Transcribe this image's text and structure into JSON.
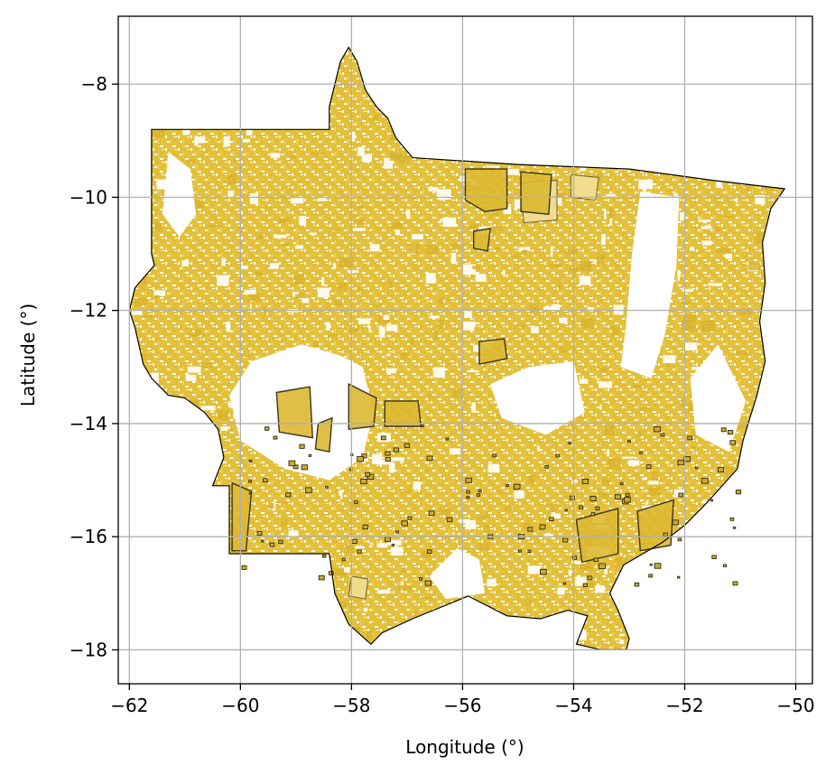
{
  "chart_data": {
    "type": "map",
    "xlabel": "Longitude (°)",
    "ylabel": "Latitude (°)",
    "xlim": [
      -62.2,
      -49.7
    ],
    "ylim": [
      -18.6,
      -6.8
    ],
    "x_ticks": [
      -62,
      -60,
      -58,
      -56,
      -54,
      -52,
      -50
    ],
    "y_ticks": [
      -8,
      -10,
      -12,
      -14,
      -16,
      -18
    ],
    "x_tick_labels": [
      "−62",
      "−60",
      "−58",
      "−56",
      "−54",
      "−52",
      "−50"
    ],
    "y_tick_labels": [
      "−8",
      "−10",
      "−12",
      "−14",
      "−16",
      "−18"
    ],
    "grid": true,
    "colors": {
      "parcel_fill": "#e3c03a",
      "parcel_light": "#f1dc8c",
      "highlight_fill": "#dcb832",
      "highlight_edge": "#3a3420",
      "boundary": "#000000",
      "grid": "#b0b0b0"
    },
    "boundary": [
      [
        -61.6,
        -8.8
      ],
      [
        -58.4,
        -8.8
      ],
      [
        -58.4,
        -8.4
      ],
      [
        -58.2,
        -7.6
      ],
      [
        -58.05,
        -7.35
      ],
      [
        -57.9,
        -7.6
      ],
      [
        -57.75,
        -8.1
      ],
      [
        -57.55,
        -8.4
      ],
      [
        -57.35,
        -8.6
      ],
      [
        -57.2,
        -8.95
      ],
      [
        -56.9,
        -9.3
      ],
      [
        -55.0,
        -9.42
      ],
      [
        -53.0,
        -9.5
      ],
      [
        -51.5,
        -9.7
      ],
      [
        -50.2,
        -9.85
      ],
      [
        -50.45,
        -10.2
      ],
      [
        -50.6,
        -10.8
      ],
      [
        -50.55,
        -11.5
      ],
      [
        -50.65,
        -12.2
      ],
      [
        -50.55,
        -12.9
      ],
      [
        -50.7,
        -13.5
      ],
      [
        -50.95,
        -14.3
      ],
      [
        -51.05,
        -14.8
      ],
      [
        -51.6,
        -15.4
      ],
      [
        -52.0,
        -15.8
      ],
      [
        -52.4,
        -16.1
      ],
      [
        -53.1,
        -16.5
      ],
      [
        -53.35,
        -17.0
      ],
      [
        -53.2,
        -17.3
      ],
      [
        -53.0,
        -17.8
      ],
      [
        -53.05,
        -18.0
      ],
      [
        -53.5,
        -18.0
      ],
      [
        -53.95,
        -17.9
      ],
      [
        -53.75,
        -17.4
      ],
      [
        -54.1,
        -17.3
      ],
      [
        -54.6,
        -17.45
      ],
      [
        -55.2,
        -17.4
      ],
      [
        -55.9,
        -17.05
      ],
      [
        -56.4,
        -17.25
      ],
      [
        -56.9,
        -17.45
      ],
      [
        -57.45,
        -17.7
      ],
      [
        -57.65,
        -17.9
      ],
      [
        -58.05,
        -17.55
      ],
      [
        -58.3,
        -17.0
      ],
      [
        -58.4,
        -16.3
      ],
      [
        -60.2,
        -16.3
      ],
      [
        -60.2,
        -15.1
      ],
      [
        -60.5,
        -15.1
      ],
      [
        -60.3,
        -14.6
      ],
      [
        -60.4,
        -14.1
      ],
      [
        -60.65,
        -13.8
      ],
      [
        -61.0,
        -13.55
      ],
      [
        -61.3,
        -13.5
      ],
      [
        -61.6,
        -13.2
      ],
      [
        -61.75,
        -12.95
      ],
      [
        -61.9,
        -12.3
      ],
      [
        -62.0,
        -12.0
      ],
      [
        -61.9,
        -11.6
      ],
      [
        -61.55,
        -11.2
      ],
      [
        -61.6,
        -11.0
      ],
      [
        -61.6,
        -8.8
      ]
    ],
    "clear_areas": [
      [
        [
          -52.8,
          -9.9
        ],
        [
          -52.95,
          -11.0
        ],
        [
          -53.05,
          -12.2
        ],
        [
          -53.15,
          -13.0
        ],
        [
          -52.6,
          -13.2
        ],
        [
          -52.35,
          -12.4
        ],
        [
          -52.15,
          -11.2
        ],
        [
          -52.1,
          -10.0
        ]
      ],
      [
        [
          -58.2,
          -12.8
        ],
        [
          -58.9,
          -12.6
        ],
        [
          -59.8,
          -12.9
        ],
        [
          -60.2,
          -13.5
        ],
        [
          -60.0,
          -14.3
        ],
        [
          -59.2,
          -14.8
        ],
        [
          -58.4,
          -15.0
        ],
        [
          -57.8,
          -14.6
        ],
        [
          -57.6,
          -13.8
        ],
        [
          -57.8,
          -13.0
        ]
      ],
      [
        [
          -61.3,
          -9.2
        ],
        [
          -60.9,
          -9.5
        ],
        [
          -60.8,
          -10.3
        ],
        [
          -61.1,
          -10.7
        ],
        [
          -61.4,
          -10.3
        ]
      ],
      [
        [
          -54.0,
          -12.9
        ],
        [
          -54.8,
          -13.0
        ],
        [
          -55.5,
          -13.3
        ],
        [
          -55.3,
          -13.9
        ],
        [
          -54.5,
          -14.2
        ],
        [
          -53.8,
          -13.8
        ]
      ],
      [
        [
          -51.4,
          -12.6
        ],
        [
          -51.9,
          -13.2
        ],
        [
          -51.8,
          -14.2
        ],
        [
          -51.2,
          -14.5
        ],
        [
          -50.9,
          -13.6
        ]
      ],
      [
        [
          -56.1,
          -16.2
        ],
        [
          -56.6,
          -16.7
        ],
        [
          -56.3,
          -17.1
        ],
        [
          -55.6,
          -17.0
        ],
        [
          -55.7,
          -16.4
        ]
      ]
    ],
    "highlight_areas": [
      [
        [
          -55.95,
          -9.5
        ],
        [
          -55.2,
          -9.5
        ],
        [
          -55.2,
          -10.2
        ],
        [
          -55.6,
          -10.25
        ],
        [
          -55.95,
          -10.05
        ]
      ],
      [
        [
          -54.95,
          -9.55
        ],
        [
          -54.4,
          -9.6
        ],
        [
          -54.45,
          -10.3
        ],
        [
          -54.95,
          -10.25
        ]
      ],
      [
        [
          -59.35,
          -13.45
        ],
        [
          -58.75,
          -13.35
        ],
        [
          -58.7,
          -14.25
        ],
        [
          -59.3,
          -14.15
        ]
      ],
      [
        [
          -58.05,
          -13.3
        ],
        [
          -57.55,
          -13.55
        ],
        [
          -57.6,
          -14.05
        ],
        [
          -58.05,
          -14.1
        ]
      ],
      [
        [
          -58.6,
          -14.0
        ],
        [
          -58.35,
          -13.9
        ],
        [
          -58.4,
          -14.5
        ],
        [
          -58.65,
          -14.45
        ]
      ],
      [
        [
          -60.15,
          -15.05
        ],
        [
          -59.8,
          -15.2
        ],
        [
          -59.9,
          -16.25
        ],
        [
          -60.15,
          -16.25
        ]
      ],
      [
        [
          -55.7,
          -12.55
        ],
        [
          -55.25,
          -12.5
        ],
        [
          -55.2,
          -12.85
        ],
        [
          -55.7,
          -12.95
        ]
      ],
      [
        [
          -57.4,
          -13.6
        ],
        [
          -56.8,
          -13.6
        ],
        [
          -56.75,
          -14.05
        ],
        [
          -57.4,
          -14.05
        ]
      ],
      [
        [
          -53.95,
          -15.7
        ],
        [
          -53.2,
          -15.5
        ],
        [
          -53.2,
          -16.3
        ],
        [
          -53.85,
          -16.45
        ]
      ],
      [
        [
          -52.85,
          -15.55
        ],
        [
          -52.2,
          -15.35
        ],
        [
          -52.25,
          -16.15
        ],
        [
          -52.8,
          -16.25
        ]
      ],
      [
        [
          -55.8,
          -10.6
        ],
        [
          -55.5,
          -10.55
        ],
        [
          -55.55,
          -10.95
        ],
        [
          -55.8,
          -10.9
        ]
      ]
    ],
    "light_areas": [
      [
        [
          -54.95,
          -9.75
        ],
        [
          -54.3,
          -9.7
        ],
        [
          -54.3,
          -10.4
        ],
        [
          -54.9,
          -10.45
        ]
      ],
      [
        [
          -54.05,
          -9.6
        ],
        [
          -53.55,
          -9.65
        ],
        [
          -53.6,
          -10.05
        ],
        [
          -54.05,
          -10.0
        ]
      ],
      [
        [
          -58.0,
          -16.7
        ],
        [
          -57.7,
          -16.75
        ],
        [
          -57.75,
          -17.1
        ],
        [
          -58.05,
          -17.05
        ]
      ]
    ]
  }
}
